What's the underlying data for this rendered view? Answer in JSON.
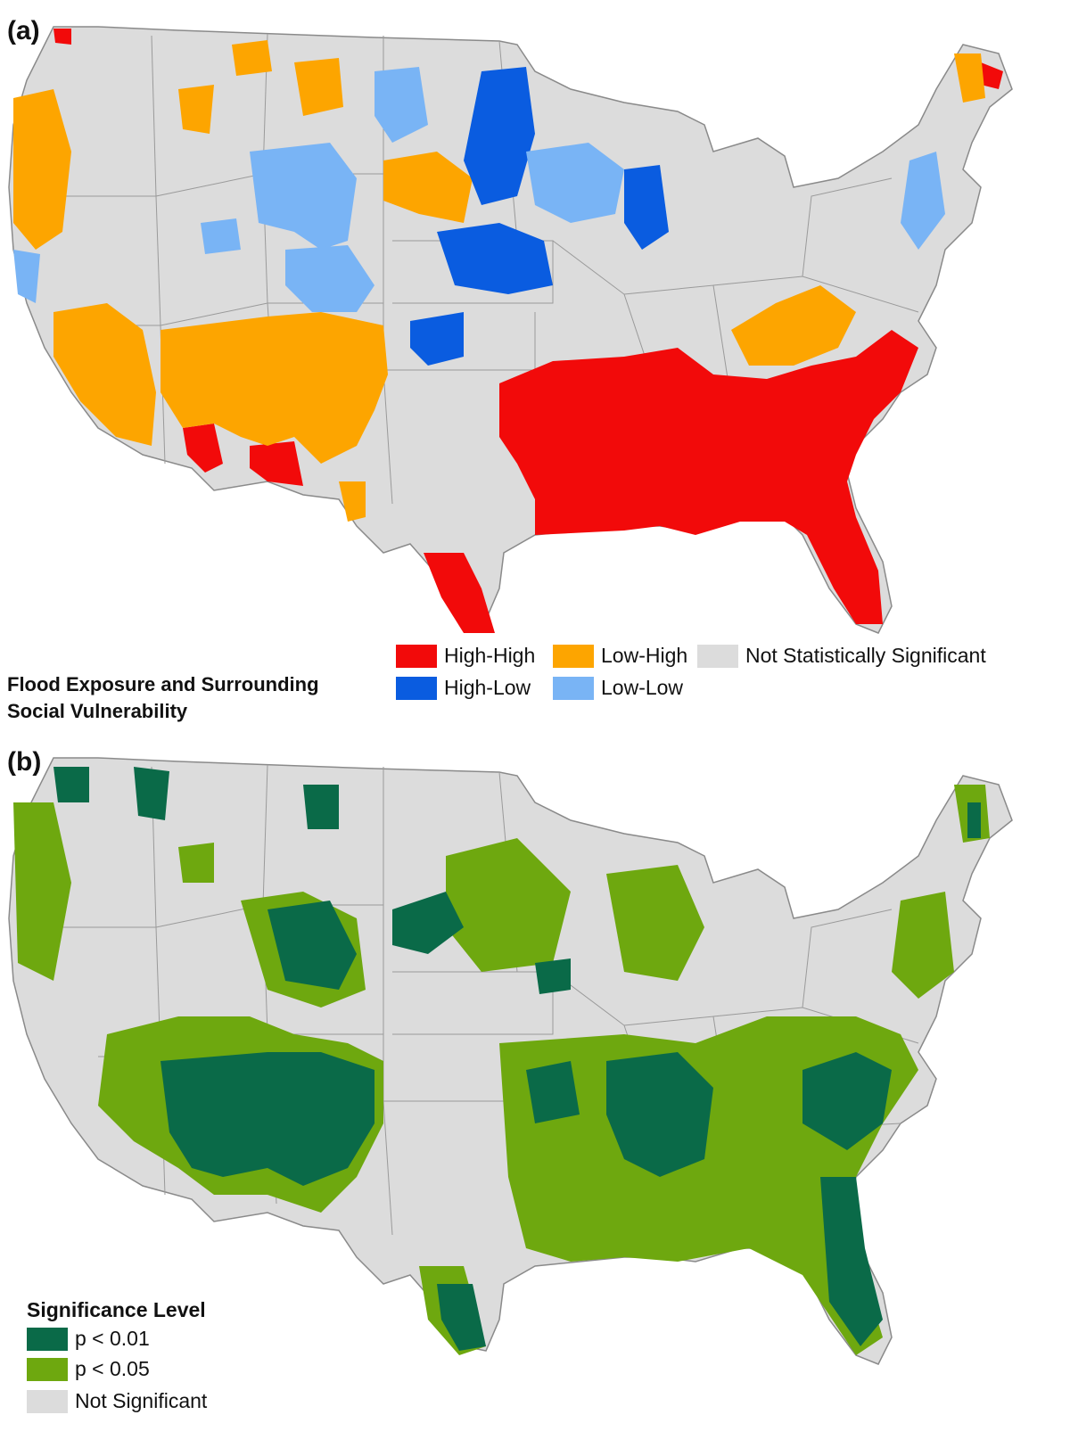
{
  "panel_a": {
    "label": "(a)",
    "legend_title_line1": "Flood Exposure and Surrounding",
    "legend_title_line2": "Social Vulnerability",
    "legend": [
      {
        "label": "High-High",
        "color": "#f20a0a"
      },
      {
        "label": "Low-High",
        "color": "#fda500"
      },
      {
        "label": "Not Statistically Significant",
        "color": "#dcdcdc"
      },
      {
        "label": "High-Low",
        "color": "#0a5ce0"
      },
      {
        "label": "Low-Low",
        "color": "#79b4f5"
      }
    ]
  },
  "panel_b": {
    "label": "(b)",
    "legend_title": "Significance Level",
    "legend": [
      {
        "label": "p < 0.01",
        "color": "#0a6a48"
      },
      {
        "label": "p < 0.05",
        "color": "#6ea80f"
      },
      {
        "label": "Not Significant",
        "color": "#dcdcdc"
      }
    ]
  },
  "map_colors": {
    "land": "#dcdcdc",
    "border": "#8a8a8a"
  }
}
